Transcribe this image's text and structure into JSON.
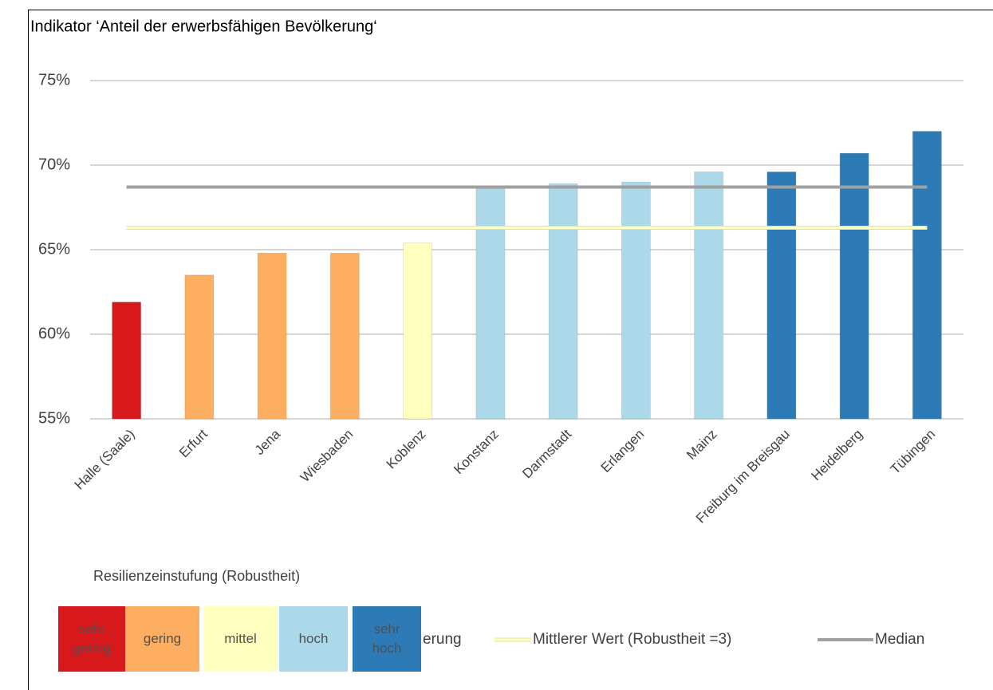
{
  "chart_data": {
    "type": "bar",
    "title": "Indikator ‘Anteil der erwerbsfähigen Bevölkerung‘",
    "categories": [
      "Halle (Saale)",
      "Erfurt",
      "Jena",
      "Wiesbaden",
      "Koblenz",
      "Konstanz",
      "Darmstadt",
      "Erlangen",
      "Mainz",
      "Freiburg im Breisgau",
      "Heidelberg",
      "Tübingen"
    ],
    "series": [
      {
        "name": "erung",
        "values": [
          61.9,
          63.5,
          64.8,
          64.8,
          65.4,
          68.6,
          68.9,
          69.0,
          69.6,
          69.6,
          70.7,
          72.0
        ],
        "colors": [
          "#d7191c",
          "#fdae61",
          "#fdae61",
          "#fdae61",
          "#ffffbf",
          "#abd9e9",
          "#abd9e9",
          "#abd9e9",
          "#abd9e9",
          "#2c7bb6",
          "#2c7bb6",
          "#2c7bb6"
        ]
      }
    ],
    "reference_lines": [
      {
        "name": "Mittlerer Wert (Robustheit =3)",
        "value": 66.3,
        "color": "#ffffc0"
      },
      {
        "name": "Median",
        "value": 68.7,
        "color": "#a0a0a0"
      }
    ],
    "ylim": [
      55,
      75
    ],
    "yticks": [
      {
        "value": 55,
        "label": "55%"
      },
      {
        "value": 60,
        "label": "60%"
      },
      {
        "value": 65,
        "label": "65%"
      },
      {
        "value": 70,
        "label": "70%"
      },
      {
        "value": 75,
        "label": "75%"
      }
    ],
    "grid": true,
    "classification": {
      "title": "Resilienzeinstufung (Robustheit)",
      "items": [
        {
          "label": "sehr gering",
          "color": "#d7191c"
        },
        {
          "label": "gering",
          "color": "#fdae61"
        },
        {
          "label": "mittel",
          "color": "#ffffbf"
        },
        {
          "label": "hoch",
          "color": "#abd9e9"
        },
        {
          "label": "sehr hoch",
          "color": "#2c7bb6"
        }
      ]
    }
  }
}
